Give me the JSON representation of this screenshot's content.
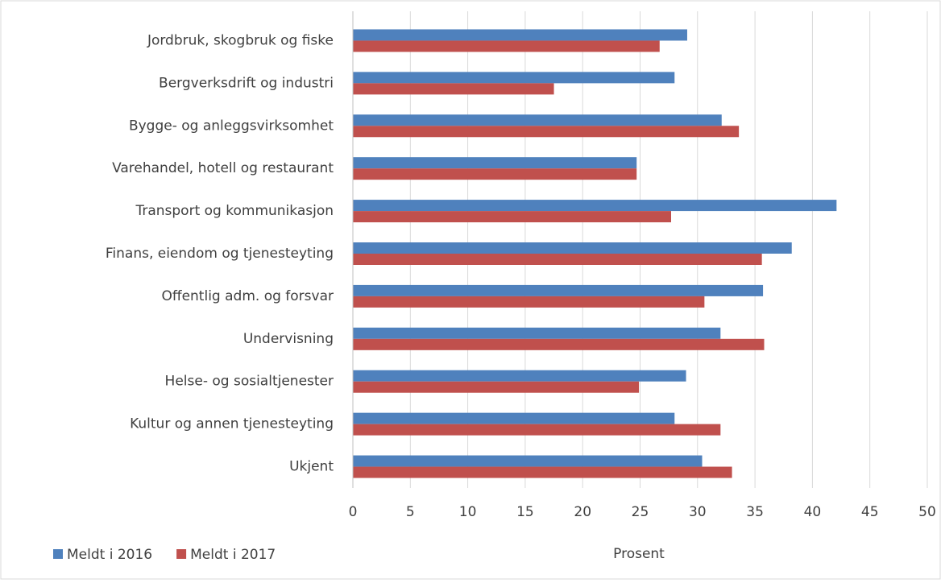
{
  "chart_data": {
    "type": "bar",
    "orientation": "horizontal",
    "categories": [
      "Jordbruk, skogbruk og fiske",
      "Bergverksdrift og industri",
      "Bygge- og anleggsvirksomhet",
      "Varehandel, hotell og restaurant",
      "Transport og kommunikasjon",
      "Finans, eiendom og tjenesteyting",
      "Offentlig adm. og forsvar",
      "Undervisning",
      "Helse- og sosialtjenester",
      "Kultur og annen tjenesteyting",
      "Ukjent"
    ],
    "series": [
      {
        "name": "Meldt i 2016",
        "color": "#4f81bd",
        "values": [
          29.1,
          28.0,
          32.1,
          24.7,
          42.1,
          38.2,
          35.7,
          32.0,
          29.0,
          28.0,
          30.4
        ]
      },
      {
        "name": "Meldt i 2017",
        "color": "#c0504d",
        "values": [
          26.7,
          17.5,
          33.6,
          24.7,
          27.7,
          35.6,
          30.6,
          35.8,
          24.9,
          32.0,
          33.0
        ]
      }
    ],
    "xlabel": "Prosent",
    "xlim": [
      0,
      50
    ],
    "xticks": [
      0,
      5,
      10,
      15,
      20,
      25,
      30,
      35,
      40,
      45,
      50
    ],
    "grid": true,
    "legend": "bottom-left"
  }
}
